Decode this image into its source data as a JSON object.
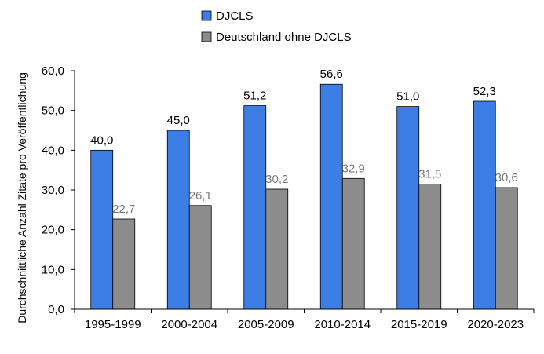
{
  "chart_data": {
    "type": "bar",
    "title": "",
    "xlabel": "",
    "ylabel": "Durchschnittliche Anzahl Zitate pro Veröffentlichung",
    "categories": [
      "1995-1999",
      "2000-2004",
      "2005-2009",
      "2010-2014",
      "2015-2019",
      "2020-2023"
    ],
    "series": [
      {
        "name": "DJCLS",
        "color": "#3d7ee6",
        "label_color": "#000000",
        "values": [
          40.0,
          45.0,
          51.2,
          56.6,
          51.0,
          52.3
        ],
        "labels": [
          "40,0",
          "45,0",
          "51,2",
          "56,6",
          "51,0",
          "52,3"
        ]
      },
      {
        "name": "Deutschland ohne DJCLS",
        "color": "#8c8c8c",
        "label_color": "#7a7a7a",
        "values": [
          22.7,
          26.1,
          30.2,
          32.9,
          31.5,
          30.6
        ],
        "labels": [
          "22,7",
          "26,1",
          "30,2",
          "32,9",
          "31,5",
          "30,6"
        ]
      }
    ],
    "ylim": [
      0,
      60
    ],
    "yticks": [
      0,
      10,
      20,
      30,
      40,
      50,
      60
    ],
    "ytick_labels": [
      "0,0",
      "10,0",
      "20,0",
      "30,0",
      "40,0",
      "50,0",
      "60,0"
    ],
    "grid": false,
    "legend_position": "top-center"
  }
}
